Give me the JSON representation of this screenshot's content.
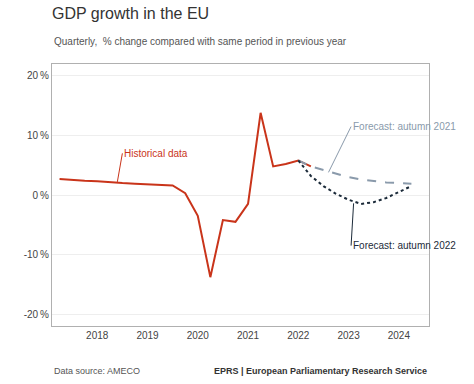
{
  "chart_data": {
    "type": "line",
    "title": "GDP growth in the EU",
    "subtitle": "Quarterly,  % change compared with same period in previous year",
    "source": "Data source: AMECO",
    "credit": "EPRS | European Parliamentary Research Service",
    "xlim": [
      2017.1,
      2024.6
    ],
    "xticks": [
      2018,
      2019,
      2020,
      2021,
      2022,
      2023,
      2024
    ],
    "ylim": [
      -22,
      22
    ],
    "yticks": [
      {
        "value": -20,
        "label": "-20 %"
      },
      {
        "value": -10,
        "label": "-10 %"
      },
      {
        "value": 0,
        "label": "0 %"
      },
      {
        "value": 10,
        "label": "10 %"
      },
      {
        "value": 20,
        "label": "20 %"
      }
    ],
    "grid": "y",
    "series": [
      {
        "x": [
          2017.25,
          2017.5,
          2017.75,
          2018.0,
          2018.25,
          2018.5,
          2018.75,
          2019.0,
          2019.25,
          2019.5,
          2019.75,
          2020.0,
          2020.25,
          2020.5,
          2020.75,
          2021.0,
          2021.25,
          2021.5,
          2021.75,
          2022.0,
          2022.25
        ],
        "values": [
          2.7,
          2.5,
          2.4,
          2.3,
          2.1,
          2.0,
          1.9,
          1.8,
          1.7,
          1.6,
          0.3,
          -3.5,
          -13.8,
          -4.2,
          -4.5,
          -1.5,
          13.8,
          4.8,
          5.2,
          5.8,
          4.8
        ],
        "color": "#c9341a",
        "line_style": "solid"
      },
      {
        "x": [
          2022.0,
          2022.25,
          2022.5,
          2022.75,
          2023.0,
          2023.25,
          2023.5,
          2023.75,
          2024.0,
          2024.25
        ],
        "values": [
          5.8,
          4.8,
          4.2,
          3.6,
          3.0,
          2.6,
          2.3,
          2.1,
          2.0,
          1.9
        ],
        "color": "#8a9aab",
        "line_style": "dash"
      },
      {
        "x": [
          2022.0,
          2022.25,
          2022.5,
          2022.75,
          2023.0,
          2023.25,
          2023.5,
          2023.75,
          2024.0,
          2024.25
        ],
        "values": [
          5.8,
          3.2,
          1.5,
          0.2,
          -0.8,
          -1.5,
          -1.2,
          -0.5,
          0.5,
          1.5
        ],
        "color": "#1c2b3a",
        "line_style": "dot"
      }
    ],
    "annotations": [
      {
        "text": "Historical data",
        "x": 2018.4,
        "y": 2.2,
        "text_x": 2018.5,
        "text_y": 7.0,
        "color": "#c9341a"
      },
      {
        "text": "Forecast: autumn 2021",
        "x": 2022.6,
        "y": 3.8,
        "text_x": 2023.05,
        "text_y": 11.5,
        "color": "#8a9aab"
      },
      {
        "text": "Forecast: autumn 2022",
        "x": 2023.1,
        "y": -1.4,
        "text_x": 2023.05,
        "text_y": -8.5,
        "color": "#1c2b3a"
      }
    ]
  }
}
